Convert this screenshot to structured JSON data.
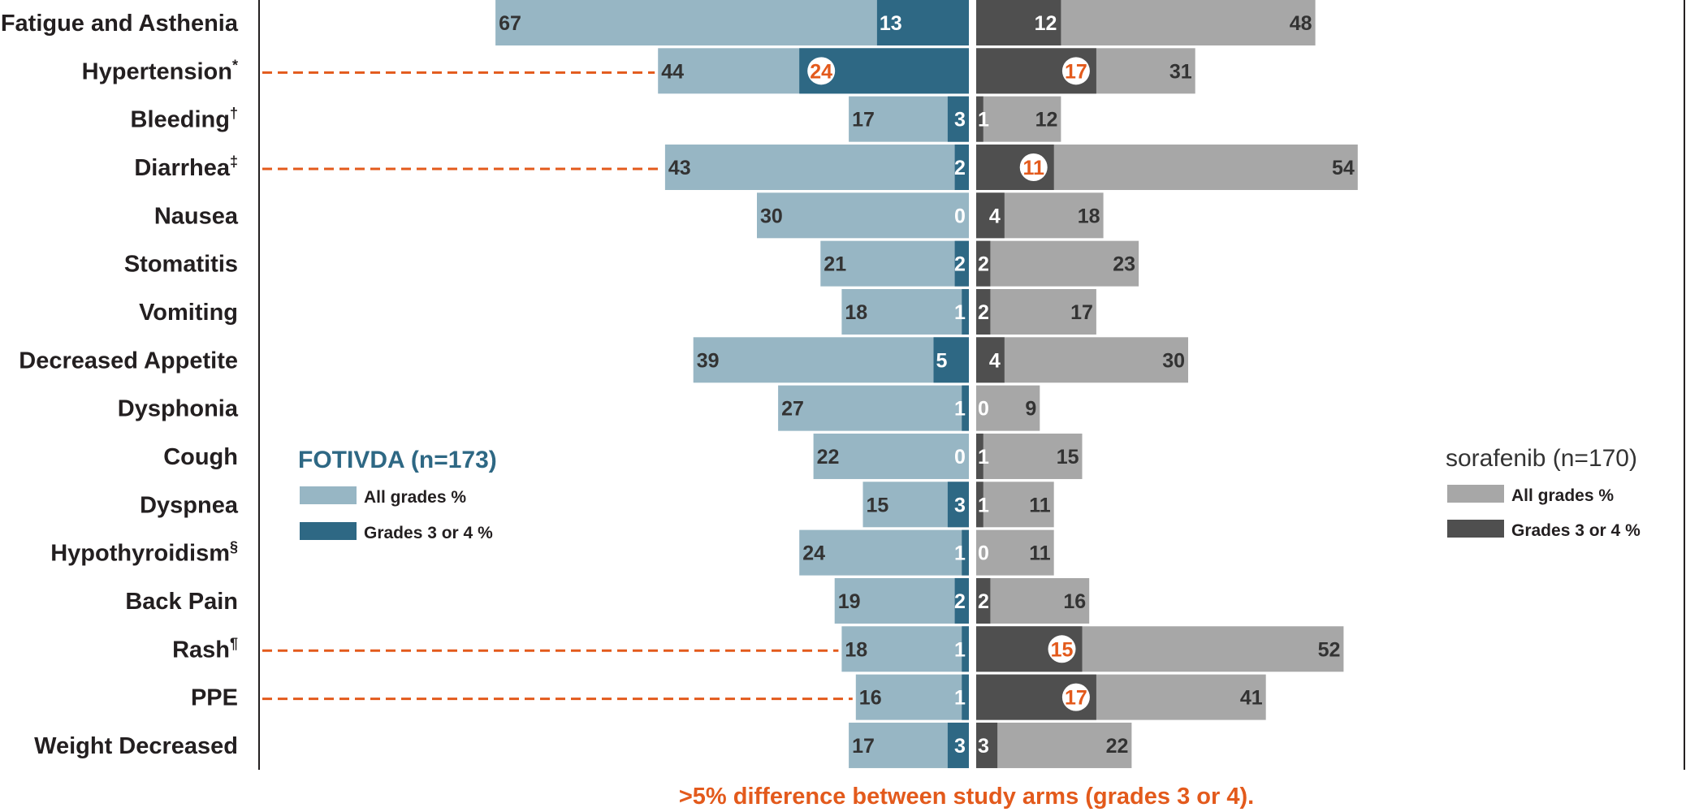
{
  "chart_data": {
    "type": "bar",
    "categories": [
      {
        "name": "Fatigue and Asthenia",
        "mark": ""
      },
      {
        "name": "Hypertension",
        "mark": "*"
      },
      {
        "name": "Bleeding",
        "mark": "†"
      },
      {
        "name": "Diarrhea",
        "mark": "‡"
      },
      {
        "name": "Nausea",
        "mark": ""
      },
      {
        "name": "Stomatitis",
        "mark": ""
      },
      {
        "name": "Vomiting",
        "mark": ""
      },
      {
        "name": "Decreased Appetite",
        "mark": ""
      },
      {
        "name": "Dysphonia",
        "mark": ""
      },
      {
        "name": "Cough",
        "mark": ""
      },
      {
        "name": "Dyspnea",
        "mark": ""
      },
      {
        "name": "Hypothyroidism",
        "mark": "§"
      },
      {
        "name": "Back Pain",
        "mark": ""
      },
      {
        "name": "Rash",
        "mark": "¶"
      },
      {
        "name": "PPE",
        "mark": ""
      },
      {
        "name": "Weight Decreased",
        "mark": ""
      }
    ],
    "arms": [
      {
        "name": "FOTIVDA (n=173)",
        "side": "left",
        "series": [
          {
            "name": "All grades %",
            "color": "#97b6c4",
            "values": [
              67,
              44,
              17,
              43,
              30,
              21,
              18,
              39,
              27,
              22,
              15,
              24,
              19,
              18,
              16,
              17
            ]
          },
          {
            "name": "Grades 3 or 4 %",
            "color": "#2e6884",
            "values": [
              13,
              24,
              3,
              2,
              0,
              2,
              1,
              5,
              1,
              0,
              3,
              1,
              2,
              1,
              1,
              3
            ]
          }
        ]
      },
      {
        "name": "sorafenib (n=170)",
        "side": "right",
        "series": [
          {
            "name": "All grades %",
            "color": "#a7a7a7",
            "values": [
              48,
              31,
              12,
              54,
              18,
              23,
              17,
              30,
              9,
              15,
              11,
              11,
              16,
              52,
              41,
              22
            ]
          },
          {
            "name": "Grades 3 or 4 %",
            "color": "#4f4f4f",
            "values": [
              12,
              17,
              1,
              11,
              4,
              2,
              2,
              4,
              0,
              1,
              1,
              0,
              2,
              15,
              17,
              3
            ]
          }
        ]
      }
    ],
    "highlight_categories": [
      "Hypertension",
      "Diarrhea",
      "Rash",
      "PPE"
    ],
    "highlight_color": "#e35a1c",
    "footnote": ">5% difference between study arms (grades 3 or 4).",
    "xlim": [
      0,
      70
    ]
  }
}
